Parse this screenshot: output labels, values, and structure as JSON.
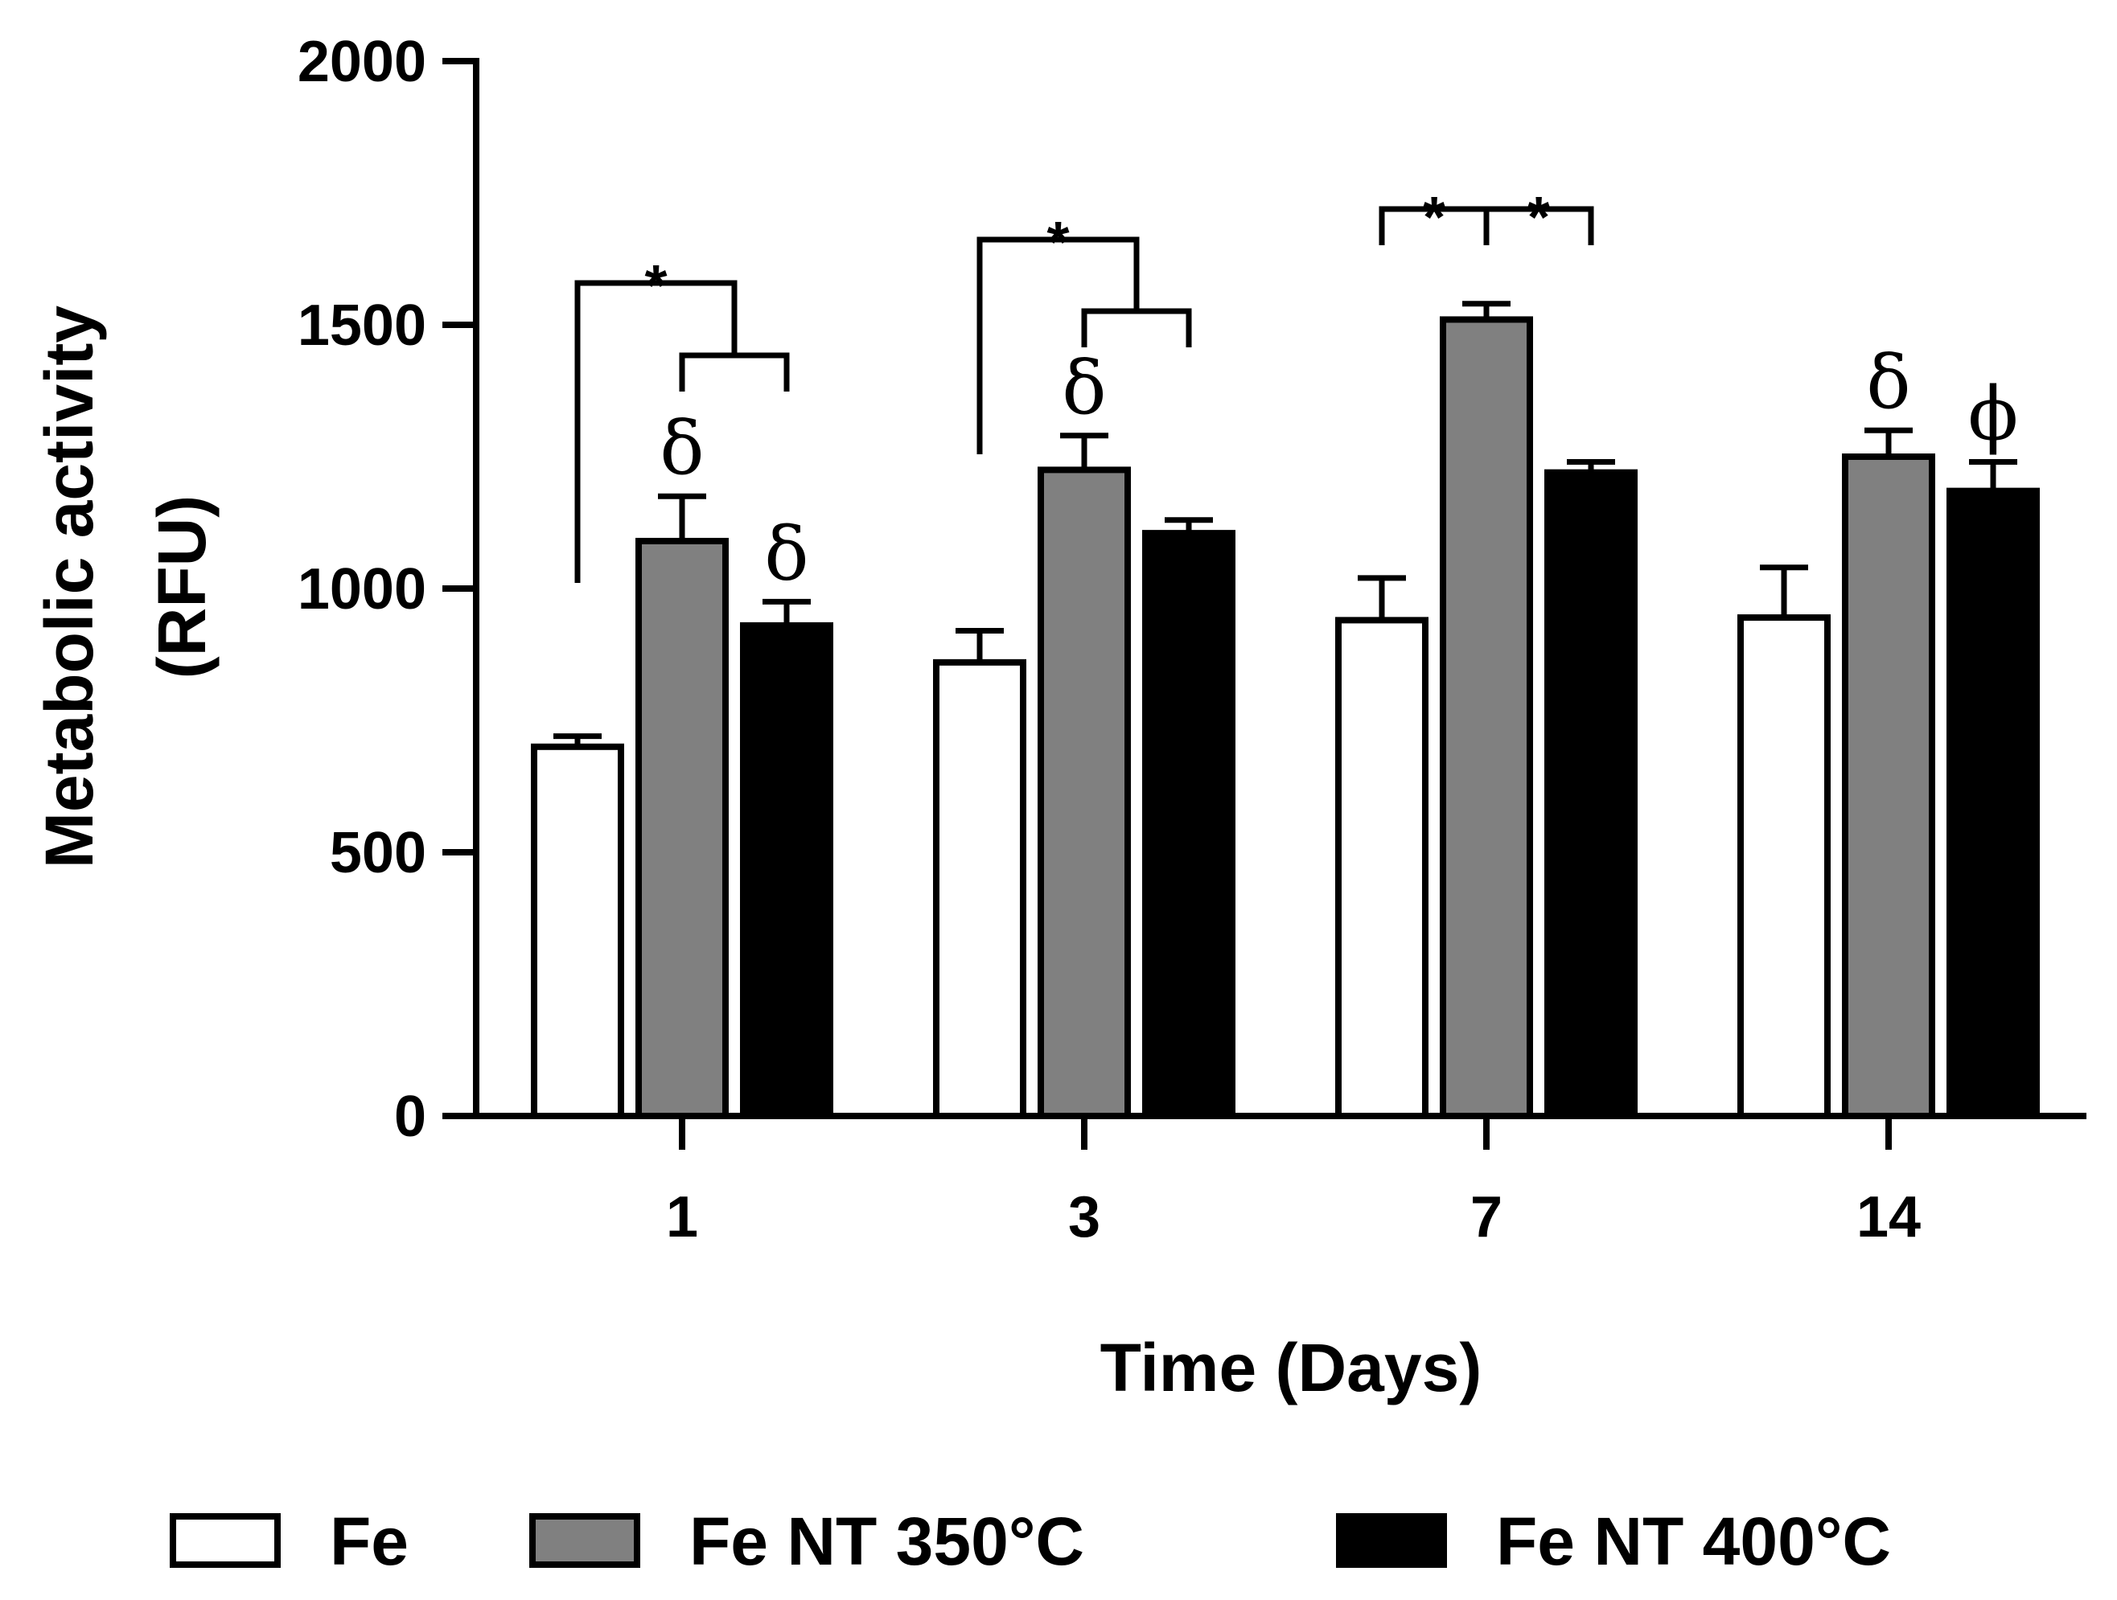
{
  "chart_data": {
    "type": "bar",
    "title": "",
    "xlabel": "Time (Days)",
    "ylabel_line1": "Metabolic activity",
    "ylabel_line2": "(RFU)",
    "ylim": [
      0,
      2000
    ],
    "yticks": [
      0,
      500,
      1000,
      1500,
      2000
    ],
    "categories": [
      "1",
      "3",
      "7",
      "14"
    ],
    "series": [
      {
        "name": "Fe",
        "color": "#ffffff",
        "values": [
          700,
          860,
          940,
          945
        ],
        "errors": [
          20,
          60,
          80,
          95
        ]
      },
      {
        "name": "Fe NT 350°C",
        "color": "#808080",
        "values": [
          1090,
          1225,
          1510,
          1250
        ],
        "errors": [
          85,
          65,
          30,
          50
        ]
      },
      {
        "name": "Fe NT 400°C",
        "color": "#000000",
        "values": [
          930,
          1105,
          1220,
          1185
        ],
        "errors": [
          45,
          25,
          20,
          55
        ]
      }
    ],
    "significance": [
      {
        "group": 0,
        "label": "*",
        "from_series": 0,
        "to_series": [
          1,
          2
        ]
      },
      {
        "group": 1,
        "label": "*",
        "from_series": 0,
        "to_series": [
          1,
          2
        ]
      },
      {
        "group": 2,
        "label": "*",
        "from_series": 0,
        "to_series": [
          1
        ]
      },
      {
        "group": 2,
        "label": "*",
        "from_series": 1,
        "to_series": [
          2
        ]
      }
    ],
    "bar_symbols": [
      {
        "group": 0,
        "series": 1,
        "label": "δ"
      },
      {
        "group": 0,
        "series": 2,
        "label": "δ"
      },
      {
        "group": 1,
        "series": 1,
        "label": "δ"
      },
      {
        "group": 3,
        "series": 1,
        "label": "δ"
      },
      {
        "group": 3,
        "series": 2,
        "label": "ϕ"
      }
    ],
    "legend_position": "bottom"
  }
}
